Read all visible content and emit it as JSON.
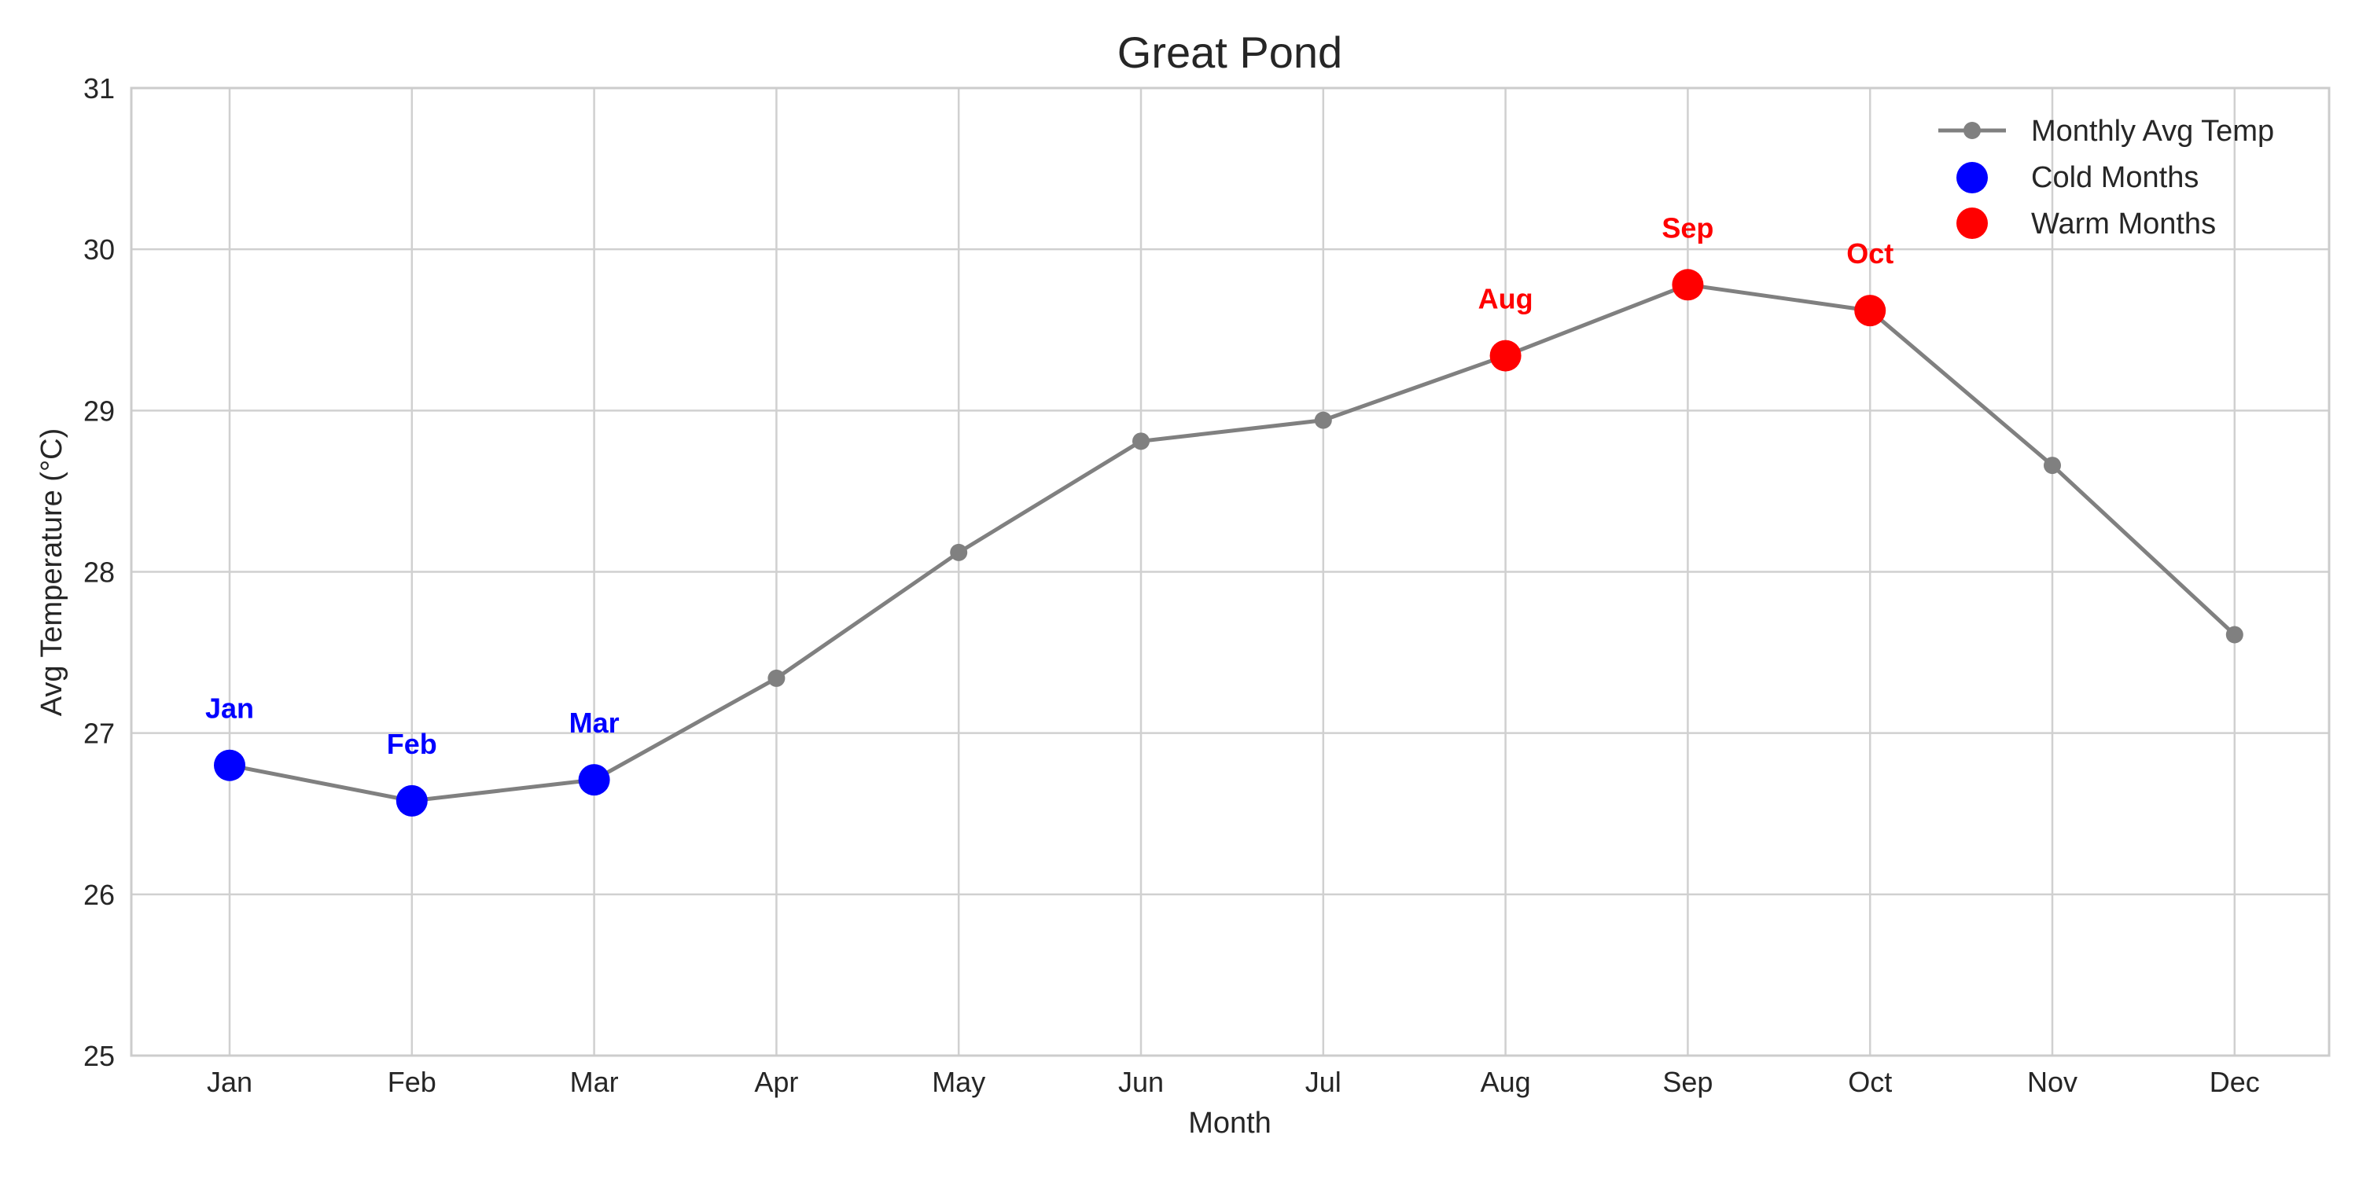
{
  "chart_data": {
    "type": "line",
    "title": "Great Pond",
    "xlabel": "Month",
    "ylabel": "Avg Temperature (°C)",
    "categories": [
      "Jan",
      "Feb",
      "Mar",
      "Apr",
      "May",
      "Jun",
      "Jul",
      "Aug",
      "Sep",
      "Oct",
      "Nov",
      "Dec"
    ],
    "ylim": [
      25,
      31
    ],
    "yticks": [
      25,
      26,
      27,
      28,
      29,
      30,
      31
    ],
    "grid": true,
    "legend_position": "top-right",
    "series": [
      {
        "name": "Monthly Avg Temp",
        "color": "#808080",
        "values": [
          26.8,
          26.58,
          26.71,
          27.34,
          28.12,
          28.81,
          28.94,
          29.34,
          29.78,
          29.62,
          28.66,
          27.61
        ]
      }
    ],
    "highlights": [
      {
        "name": "Cold Months",
        "color": "#0000ff",
        "months": [
          "Jan",
          "Feb",
          "Mar"
        ]
      },
      {
        "name": "Warm Months",
        "color": "#ff0000",
        "months": [
          "Aug",
          "Sep",
          "Oct"
        ]
      }
    ]
  }
}
